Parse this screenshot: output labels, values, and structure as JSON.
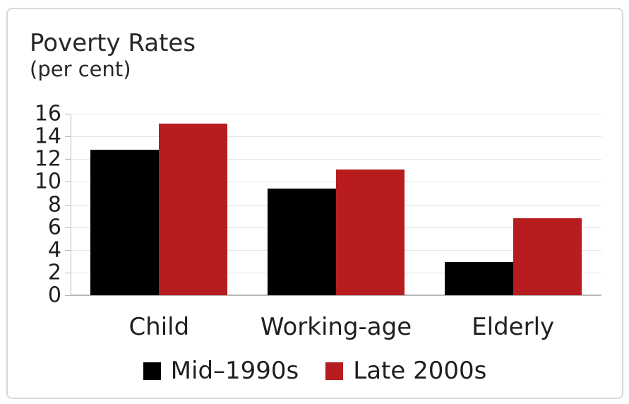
{
  "chart_data": {
    "type": "bar",
    "title": "Poverty Rates",
    "subtitle": "(per cent)",
    "categories": [
      "Child",
      "Working-age",
      "Elderly"
    ],
    "series": [
      {
        "name": "Mid–1990s",
        "color": "#000000",
        "values": [
          12.8,
          9.4,
          2.9
        ]
      },
      {
        "name": "Late 2000s",
        "color": "#b71c1f",
        "values": [
          15.1,
          11.1,
          6.8
        ]
      }
    ],
    "ylim": [
      0,
      16
    ],
    "yticks": [
      0,
      2,
      4,
      6,
      8,
      10,
      12,
      14,
      16
    ],
    "xlabel": "",
    "ylabel": "",
    "grid": true,
    "legend_position": "bottom",
    "colors": {
      "series_1": "#000000",
      "series_2": "#b71c1f",
      "gridline": "#e4e4e4",
      "axis": "#b6b6b6",
      "text": "#1f1f1f",
      "frame_border": "#d8d8d8",
      "background": "#ffffff"
    }
  }
}
